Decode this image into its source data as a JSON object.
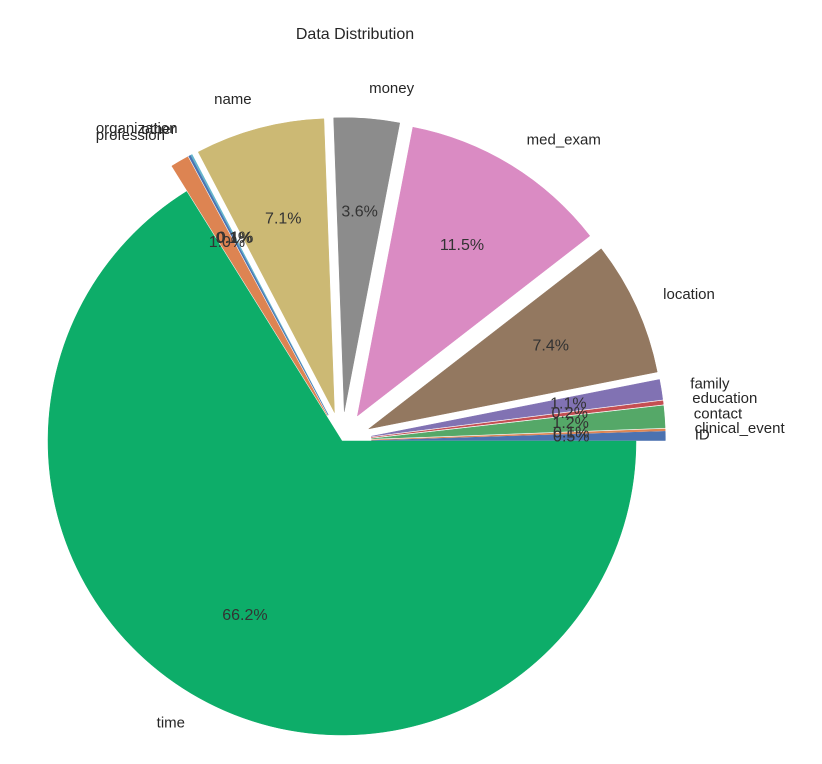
{
  "chart_data": {
    "type": "pie",
    "title": "Data Distribution",
    "start_angle_deg": 0,
    "direction": "counterclockwise",
    "slices": [
      {
        "label": "ID",
        "value": 0.5,
        "pct_text": "0.5%",
        "color": "#4c72b0",
        "explode": 0.1
      },
      {
        "label": "clinical_event",
        "value": 0.1,
        "pct_text": "0.1%",
        "color": "#dd8452",
        "explode": 0.1
      },
      {
        "label": "contact",
        "value": 1.2,
        "pct_text": "1.2%",
        "color": "#55a868",
        "explode": 0.1
      },
      {
        "label": "education",
        "value": 0.2,
        "pct_text": "0.2%",
        "color": "#c44e52",
        "explode": 0.1
      },
      {
        "label": "family",
        "value": 1.1,
        "pct_text": "1.1%",
        "color": "#8172b3",
        "explode": 0.1
      },
      {
        "label": "location",
        "value": 7.4,
        "pct_text": "7.4%",
        "color": "#937860",
        "explode": 0.1
      },
      {
        "label": "med_exam",
        "value": 11.5,
        "pct_text": "11.5%",
        "color": "#da8bc3",
        "explode": 0.1
      },
      {
        "label": "money",
        "value": 3.6,
        "pct_text": "3.6%",
        "color": "#8c8c8c",
        "explode": 0.1
      },
      {
        "label": "name",
        "value": 7.1,
        "pct_text": "7.1%",
        "color": "#ccb974",
        "explode": 0.1
      },
      {
        "label": "organization",
        "value": 0.1,
        "pct_text": "0.1%",
        "color": "#64b5cd",
        "explode": 0.1
      },
      {
        "label": "other",
        "value": 0.1,
        "pct_text": "0.1%",
        "color": "#4c72b0",
        "explode": 0.1
      },
      {
        "label": "profession",
        "value": 1.0,
        "pct_text": "1.0%",
        "color": "#dd8452",
        "explode": 0.1
      },
      {
        "label": "time",
        "value": 66.2,
        "pct_text": "66.2%",
        "color": "#0dad69",
        "explode": 0.0
      }
    ]
  }
}
